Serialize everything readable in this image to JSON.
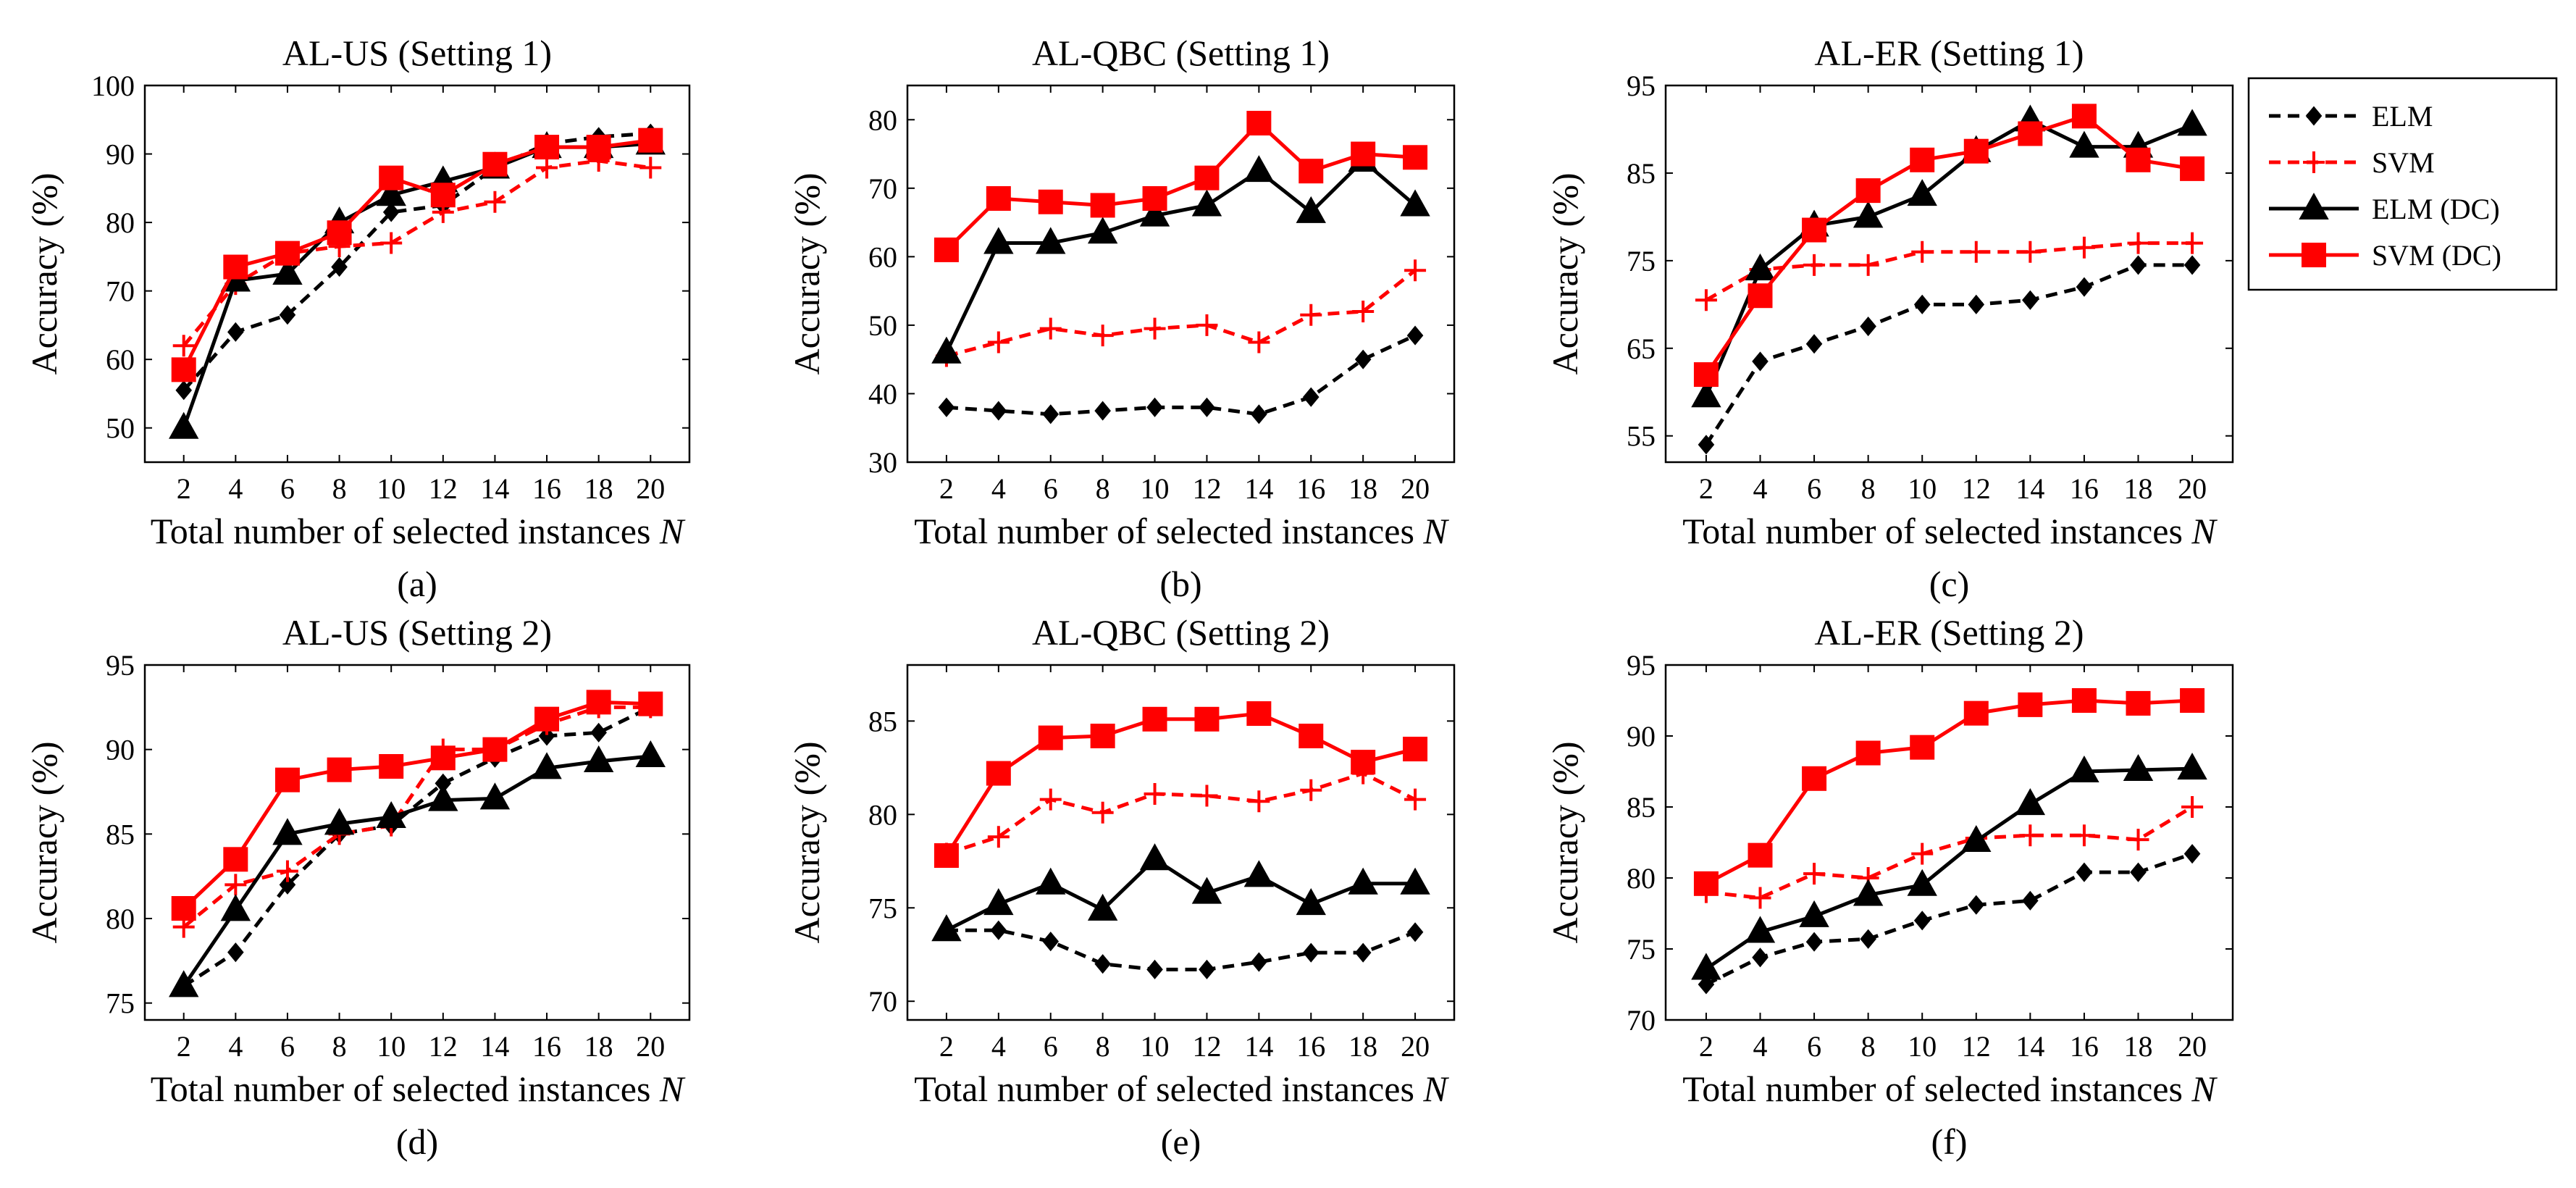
{
  "legend": {
    "entries": [
      {
        "name": "ELM",
        "color": "#000000",
        "style": "dashed",
        "marker": "diamond"
      },
      {
        "name": "SVM",
        "color": "#ff0000",
        "style": "dashed",
        "marker": "plus"
      },
      {
        "name": "ELM (DC)",
        "color": "#000000",
        "style": "solid",
        "marker": "triangle"
      },
      {
        "name": "SVM (DC)",
        "color": "#ff0000",
        "style": "solid",
        "marker": "square"
      }
    ]
  },
  "chart_data": [
    {
      "type": "line",
      "title": "AL-US (Setting 1)",
      "xlabel": "Total number of selected instances",
      "xlabel_var": "N",
      "ylabel": "Accuracy (%)",
      "sublabel": "(a)",
      "x": [
        2,
        4,
        6,
        8,
        10,
        12,
        14,
        16,
        18,
        20
      ],
      "xlim": [
        0.5,
        21.5
      ],
      "ylim": [
        45,
        100
      ],
      "yticks": [
        50,
        60,
        70,
        80,
        90,
        100
      ],
      "series": [
        {
          "name": "ELM",
          "values": [
            55.5,
            64,
            66.5,
            73.5,
            81.5,
            82.5,
            88,
            91.5,
            92.5,
            93
          ]
        },
        {
          "name": "SVM",
          "values": [
            62,
            71,
            75.5,
            76.5,
            77,
            81.5,
            83,
            88,
            89,
            88
          ]
        },
        {
          "name": "ELM (DC)",
          "values": [
            50,
            71.5,
            72.5,
            80,
            84,
            86,
            88,
            91,
            91,
            91.5
          ]
        },
        {
          "name": "SVM (DC)",
          "values": [
            58.5,
            73.5,
            75.5,
            78.5,
            86.5,
            84,
            88.5,
            91,
            91,
            92
          ]
        }
      ]
    },
    {
      "type": "line",
      "title": "AL-QBC (Setting 1)",
      "xlabel": "Total number of selected instances",
      "xlabel_var": "N",
      "ylabel": "Accuracy (%)",
      "sublabel": "(b)",
      "x": [
        2,
        4,
        6,
        8,
        10,
        12,
        14,
        16,
        18,
        20
      ],
      "xlim": [
        0.5,
        21.5
      ],
      "ylim": [
        30,
        85
      ],
      "yticks": [
        30,
        40,
        50,
        60,
        70,
        80
      ],
      "series": [
        {
          "name": "ELM",
          "values": [
            38,
            37.5,
            37,
            37.5,
            38,
            38,
            37,
            39.5,
            45,
            48.5
          ]
        },
        {
          "name": "SVM",
          "values": [
            45.5,
            47.5,
            49.5,
            48.5,
            49.5,
            50,
            47.5,
            51.5,
            52,
            58
          ]
        },
        {
          "name": "ELM (DC)",
          "values": [
            46,
            62,
            62,
            63.5,
            66,
            67.5,
            72.5,
            66.5,
            74,
            67.5
          ]
        },
        {
          "name": "SVM (DC)",
          "values": [
            61,
            68.5,
            68,
            67.5,
            68.5,
            71.5,
            79.5,
            72.5,
            75,
            74.5
          ]
        }
      ]
    },
    {
      "type": "line",
      "title": "AL-ER (Setting 1)",
      "xlabel": "Total number of selected instances",
      "xlabel_var": "N",
      "ylabel": "Accuracy (%)",
      "sublabel": "(c)",
      "x": [
        2,
        4,
        6,
        8,
        10,
        12,
        14,
        16,
        18,
        20
      ],
      "xlim": [
        0.5,
        21.5
      ],
      "ylim": [
        52,
        95
      ],
      "yticks": [
        55,
        65,
        75,
        85,
        95
      ],
      "series": [
        {
          "name": "ELM",
          "values": [
            54,
            63.5,
            65.5,
            67.5,
            70,
            70,
            70.5,
            72,
            74.5,
            74.5
          ]
        },
        {
          "name": "SVM",
          "values": [
            70.5,
            74,
            74.5,
            74.5,
            76,
            76,
            76,
            76.5,
            77,
            77
          ]
        },
        {
          "name": "ELM (DC)",
          "values": [
            59.5,
            74,
            79,
            80,
            82.5,
            87.5,
            91,
            88,
            88,
            90.5
          ]
        },
        {
          "name": "SVM (DC)",
          "values": [
            62,
            71,
            78.5,
            83,
            86.5,
            87.5,
            89.5,
            91.5,
            86.5,
            85.5
          ]
        }
      ]
    },
    {
      "type": "line",
      "title": "AL-US (Setting 2)",
      "xlabel": "Total number of selected instances",
      "xlabel_var": "N",
      "ylabel": "Accuracy (%)",
      "sublabel": "(d)",
      "x": [
        2,
        4,
        6,
        8,
        10,
        12,
        14,
        16,
        18,
        20
      ],
      "xlim": [
        0.5,
        21.5
      ],
      "ylim": [
        74,
        95
      ],
      "yticks": [
        75,
        80,
        85,
        90,
        95
      ],
      "series": [
        {
          "name": "ELM",
          "values": [
            76,
            78,
            82,
            85,
            85.5,
            88,
            89.5,
            90.8,
            91,
            92.5
          ]
        },
        {
          "name": "SVM",
          "values": [
            79.5,
            82,
            82.8,
            85,
            85.5,
            90,
            90,
            91.5,
            92.5,
            92.5
          ]
        },
        {
          "name": "ELM (DC)",
          "values": [
            76,
            80.5,
            85,
            85.6,
            86,
            87,
            87.1,
            88.9,
            89.3,
            89.6
          ]
        },
        {
          "name": "SVM (DC)",
          "values": [
            80.6,
            83.5,
            88.2,
            88.8,
            89,
            89.5,
            90,
            91.8,
            92.8,
            92.7
          ]
        }
      ]
    },
    {
      "type": "line",
      "title": "AL-QBC (Setting 2)",
      "xlabel": "Total number of selected instances",
      "xlabel_var": "N",
      "ylabel": "Accuracy (%)",
      "sublabel": "(e)",
      "x": [
        2,
        4,
        6,
        8,
        10,
        12,
        14,
        16,
        18,
        20
      ],
      "xlim": [
        0.5,
        21.5
      ],
      "ylim": [
        69,
        88
      ],
      "yticks": [
        70,
        75,
        80,
        85
      ],
      "series": [
        {
          "name": "ELM",
          "values": [
            73.8,
            73.8,
            73.2,
            72,
            71.7,
            71.7,
            72.1,
            72.6,
            72.6,
            73.7
          ]
        },
        {
          "name": "SVM",
          "values": [
            77.9,
            78.8,
            80.8,
            80.1,
            81.1,
            81,
            80.7,
            81.3,
            82.2,
            80.8
          ]
        },
        {
          "name": "ELM (DC)",
          "values": [
            73.8,
            75.2,
            76.3,
            74.9,
            77.6,
            75.8,
            76.7,
            75.2,
            76.3,
            76.3
          ]
        },
        {
          "name": "SVM (DC)",
          "values": [
            77.8,
            82.2,
            84.1,
            84.2,
            85.1,
            85.1,
            85.4,
            84.2,
            82.8,
            83.5
          ]
        }
      ]
    },
    {
      "type": "line",
      "title": "AL-ER (Setting 2)",
      "xlabel": "Total number of selected instances",
      "xlabel_var": "N",
      "ylabel": "Accuracy (%)",
      "sublabel": "(f)",
      "x": [
        2,
        4,
        6,
        8,
        10,
        12,
        14,
        16,
        18,
        20
      ],
      "xlim": [
        0.5,
        21.5
      ],
      "ylim": [
        70,
        95
      ],
      "yticks": [
        70,
        75,
        80,
        85,
        90,
        95
      ],
      "series": [
        {
          "name": "ELM",
          "values": [
            72.5,
            74.4,
            75.5,
            75.7,
            77,
            78.1,
            78.4,
            80.4,
            80.4,
            81.7
          ]
        },
        {
          "name": "SVM",
          "values": [
            79,
            78.6,
            80.3,
            80,
            81.7,
            82.8,
            83,
            83,
            82.7,
            85
          ]
        },
        {
          "name": "ELM (DC)",
          "values": [
            73.6,
            76.2,
            77.3,
            78.8,
            79.5,
            82.6,
            85.2,
            87.5,
            87.6,
            87.7
          ]
        },
        {
          "name": "SVM (DC)",
          "values": [
            79.6,
            81.6,
            87,
            88.8,
            89.2,
            91.6,
            92.2,
            92.5,
            92.3,
            92.5
          ]
        }
      ]
    }
  ]
}
